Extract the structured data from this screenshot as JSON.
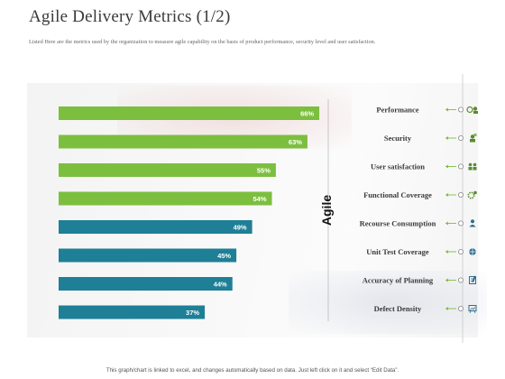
{
  "title": "Agile Delivery Metrics (1/2)",
  "subtitle": "Listed Here are the metrics used by the organization to measure agile capability on the basis of product performance, security level and user satisfaction.",
  "footer": "This graph/chart is linked to excel, and changes automatically based on data. Just left click on it and select “Edit Data”.",
  "colors": {
    "green": "#7cbf3f",
    "teal": "#1e7f96",
    "icon": "#5a8a2e",
    "line": "#7cbf3f"
  },
  "chart_data": {
    "type": "bar",
    "orientation": "horizontal",
    "group_label": "Agile",
    "categories": [
      "Performance",
      "Security",
      "User satisfaction",
      "Functional Coverage",
      "Recourse Consumption",
      "Unit Test Coverage",
      "Accuracy of Planning",
      "Defect Density"
    ],
    "values": [
      66,
      63,
      55,
      54,
      49,
      45,
      44,
      37
    ],
    "value_labels": [
      "66%",
      "63%",
      "55%",
      "54%",
      "49%",
      "45%",
      "44%",
      "37%"
    ],
    "bar_colors": [
      "green",
      "green",
      "green",
      "green",
      "teal",
      "teal",
      "teal",
      "teal"
    ],
    "icons": [
      "gears-people-icon",
      "security-user-icon",
      "users-icon",
      "gear-settings-icon",
      "person-icon",
      "target-icon",
      "checklist-icon",
      "chart-board-icon"
    ],
    "xlim": [
      0,
      100
    ],
    "grid": false
  }
}
